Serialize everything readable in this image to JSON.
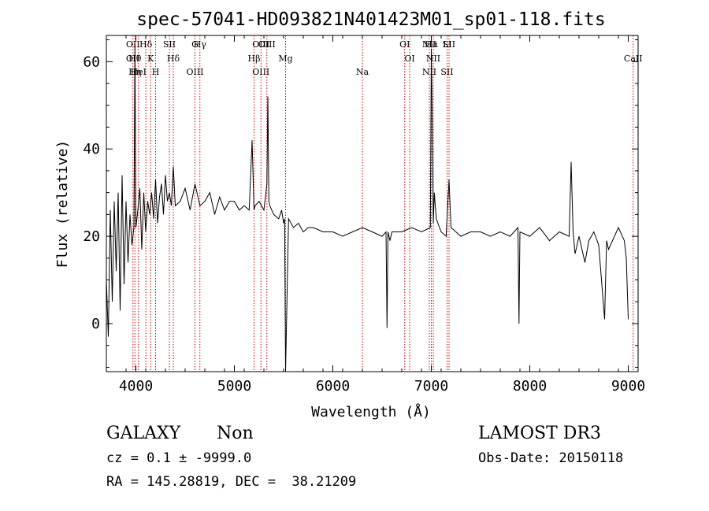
{
  "chart_data": {
    "type": "line",
    "title": "spec-57041-HD093821N401423M01_sp01-118.fits",
    "xlabel": "Wavelength (Å)",
    "ylabel": "Flux (relative)",
    "xlim": [
      3700,
      9100
    ],
    "ylim": [
      -11,
      66
    ],
    "xticks": [
      4000,
      5000,
      6000,
      7000,
      8000,
      9000
    ],
    "yticks": [
      0,
      20,
      40,
      60
    ],
    "grid": false,
    "series": [
      {
        "color": "#000000",
        "x": [
          3700,
          3720,
          3740,
          3760,
          3780,
          3800,
          3820,
          3840,
          3860,
          3880,
          3900,
          3920,
          3940,
          3960,
          3980,
          3990,
          4000,
          4020,
          4040,
          4060,
          4080,
          4100,
          4120,
          4140,
          4160,
          4180,
          4200,
          4220,
          4240,
          4260,
          4280,
          4300,
          4320,
          4340,
          4360,
          4380,
          4400,
          4450,
          4500,
          4550,
          4600,
          4650,
          4700,
          4750,
          4800,
          4850,
          4900,
          4950,
          5000,
          5050,
          5100,
          5150,
          5180,
          5200,
          5210,
          5250,
          5300,
          5330,
          5340,
          5350,
          5360,
          5400,
          5450,
          5480,
          5500,
          5510,
          5520,
          5550,
          5600,
          5650,
          5700,
          5750,
          5800,
          5900,
          6000,
          6100,
          6200,
          6300,
          6400,
          6500,
          6540,
          6550,
          6560,
          6580,
          6600,
          6700,
          6800,
          6900,
          6990,
          7000,
          7010,
          7020,
          7030,
          7050,
          7100,
          7150,
          7180,
          7200,
          7250,
          7300,
          7400,
          7500,
          7600,
          7700,
          7800,
          7880,
          7890,
          7900,
          8000,
          8100,
          8200,
          8300,
          8400,
          8420,
          8440,
          8460,
          8500,
          8560,
          8600,
          8650,
          8700,
          8760,
          8780,
          8800,
          8900,
          8960,
          8980,
          9000
        ],
        "y": [
          10,
          -3,
          26,
          5,
          28,
          12,
          30,
          3,
          34,
          9,
          28,
          14,
          25,
          18,
          22,
          64,
          22,
          26,
          31,
          17,
          30,
          21,
          28,
          25,
          30,
          24,
          33,
          23,
          29,
          32,
          25,
          34,
          28,
          30,
          27,
          36,
          27,
          28,
          31,
          26,
          32,
          27,
          28,
          30,
          25,
          29,
          26,
          28,
          28,
          26,
          27,
          26,
          42,
          26,
          27,
          28,
          26,
          32,
          52,
          28,
          27,
          25,
          24,
          26,
          23,
          24,
          -11,
          24,
          22,
          23,
          21,
          22,
          22,
          21,
          21,
          20,
          21,
          22,
          21,
          20,
          21,
          -1,
          21,
          19,
          21,
          21,
          22,
          21,
          22,
          63,
          45,
          23,
          30,
          24,
          21,
          20,
          33,
          22,
          21,
          20,
          21,
          21,
          20,
          21,
          20,
          22,
          0,
          21,
          20,
          22,
          19,
          21,
          20,
          37,
          21,
          16,
          20,
          14,
          19,
          21,
          18,
          1,
          19,
          17,
          22,
          19,
          15,
          1
        ]
      }
    ],
    "lines": [
      {
        "x": 3970,
        "labels": [
          "OII",
          "OII"
        ]
      },
      {
        "x": 3990,
        "labels": [
          "Hθ",
          "Hη"
        ]
      },
      {
        "x": 4026,
        "labels": [
          "HeI"
        ]
      },
      {
        "x": 4101,
        "labels": [
          "Hδ"
        ]
      },
      {
        "x": 4150,
        "labels": [
          "K"
        ]
      },
      {
        "x": 4200,
        "labels": [
          "H"
        ]
      },
      {
        "x": 4340,
        "labels": [
          "SII"
        ]
      },
      {
        "x": 4380,
        "labels": [
          "Hδ"
        ]
      },
      {
        "x": 4600,
        "labels": [
          "OIII",
          "G"
        ]
      },
      {
        "x": 4650,
        "labels": [
          "Hγ"
        ]
      },
      {
        "x": 5200,
        "labels": [
          "Hβ"
        ]
      },
      {
        "x": 5270,
        "labels": [
          "OIII",
          "OIII"
        ]
      },
      {
        "x": 5330,
        "labels": [
          "OIII"
        ]
      },
      {
        "x": 5520,
        "labels": [
          "Mg"
        ]
      },
      {
        "x": 6300,
        "labels": [
          "Na"
        ]
      },
      {
        "x": 6730,
        "labels": [
          "OI"
        ]
      },
      {
        "x": 6780,
        "labels": [
          "OI"
        ]
      },
      {
        "x": 6980,
        "labels": [
          "NII",
          "NII"
        ]
      },
      {
        "x": 7000,
        "labels": [
          "Hα"
        ]
      },
      {
        "x": 7020,
        "labels": [
          "NII"
        ]
      },
      {
        "x": 7160,
        "labels": [
          "SII",
          "Li"
        ]
      },
      {
        "x": 7180,
        "labels": [
          "SII"
        ]
      },
      {
        "x": 9050,
        "labels": [
          "CaII"
        ]
      }
    ]
  },
  "info": {
    "class": "GALAXY",
    "subclass": "Non",
    "survey": "LAMOST DR3",
    "cz": "cz = 0.1 ± -9999.0",
    "obs_date": "Obs-Date: 20150118",
    "radec": "RA = 145.28819, DEC =  38.21209"
  }
}
